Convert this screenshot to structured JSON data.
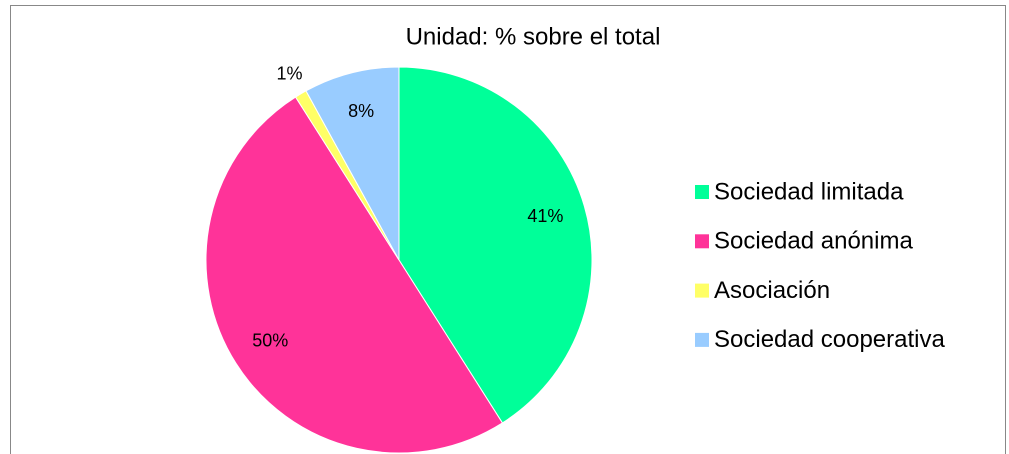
{
  "chart_data": {
    "type": "pie",
    "title": "Unidad: % sobre el total",
    "categories": [
      "Sociedad limitada",
      "Sociedad anónima",
      "Asociación",
      "Sociedad cooperativa"
    ],
    "values": [
      41,
      50,
      1,
      8
    ],
    "value_labels": [
      "41%",
      "50%",
      "1%",
      "8%"
    ],
    "colors": [
      "#00FF99",
      "#FF3399",
      "#FFFF66",
      "#99CCFF"
    ],
    "legend": "right"
  }
}
